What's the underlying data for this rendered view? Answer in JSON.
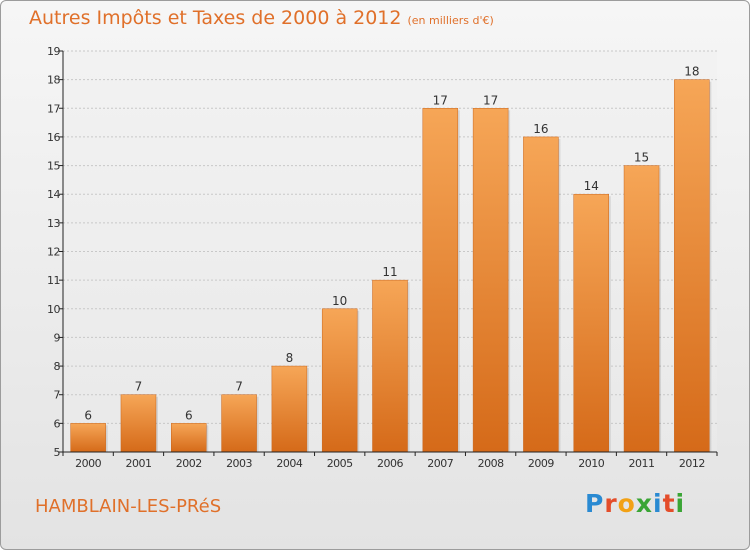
{
  "header": {
    "title": "Autres Impôts et Taxes de 2000 à 2012",
    "subtitle": "(en milliers d'€)"
  },
  "footer": {
    "town": "HAMBLAIN-LES-PRéS",
    "brand_letters": [
      "P",
      "r",
      "o",
      "x",
      "i",
      "t",
      "i"
    ],
    "brand_colors": [
      "#2a8ad2",
      "#e44d2a",
      "#f2a114",
      "#3aa535",
      "#2a8ad2",
      "#e44d2a",
      "#3aa535"
    ]
  },
  "colors": {
    "title": "#e0702a",
    "bar_light": "#f6a657",
    "bar_dark": "#d56a19",
    "axis": "#222222",
    "grid": "#c8c8c8"
  },
  "chart_data": {
    "type": "bar",
    "categories": [
      "2000",
      "2001",
      "2002",
      "2003",
      "2004",
      "2005",
      "2006",
      "2007",
      "2008",
      "2009",
      "2010",
      "2011",
      "2012"
    ],
    "values": [
      6,
      7,
      6,
      7,
      8,
      10,
      11,
      17,
      17,
      16,
      14,
      15,
      18
    ],
    "data_labels": [
      "6",
      "7",
      "6",
      "7",
      "8",
      "10",
      "11",
      "17",
      "17",
      "16",
      "14",
      "15",
      "18"
    ],
    "title": "Autres Impôts et Taxes de 2000 à 2012",
    "subtitle": "(en milliers d'€)",
    "xlabel": "",
    "ylabel": "",
    "ylim": [
      5,
      19
    ],
    "yticks": [
      "5",
      "6",
      "7",
      "8",
      "9",
      "10",
      "11",
      "12",
      "13",
      "14",
      "15",
      "16",
      "17",
      "18",
      "19"
    ],
    "grid": true
  }
}
